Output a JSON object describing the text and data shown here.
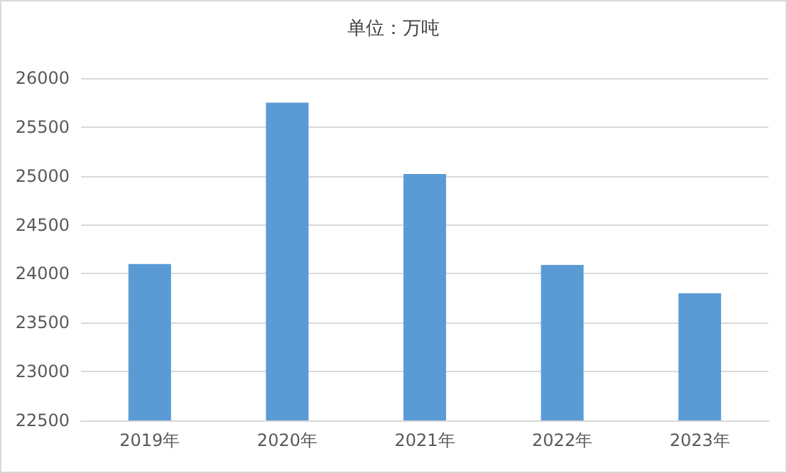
{
  "chart_data": {
    "type": "bar",
    "title": "单位：万吨",
    "categories": [
      "2019年",
      "2020年",
      "2021年",
      "2022年",
      "2023年"
    ],
    "values": [
      24100,
      25750,
      25020,
      24090,
      23800
    ],
    "color": "#5b9bd5",
    "ylim": [
      22500,
      26000
    ],
    "yticks": [
      22500,
      23000,
      23500,
      24000,
      24500,
      25000,
      25500,
      26000
    ],
    "grid": "y"
  }
}
